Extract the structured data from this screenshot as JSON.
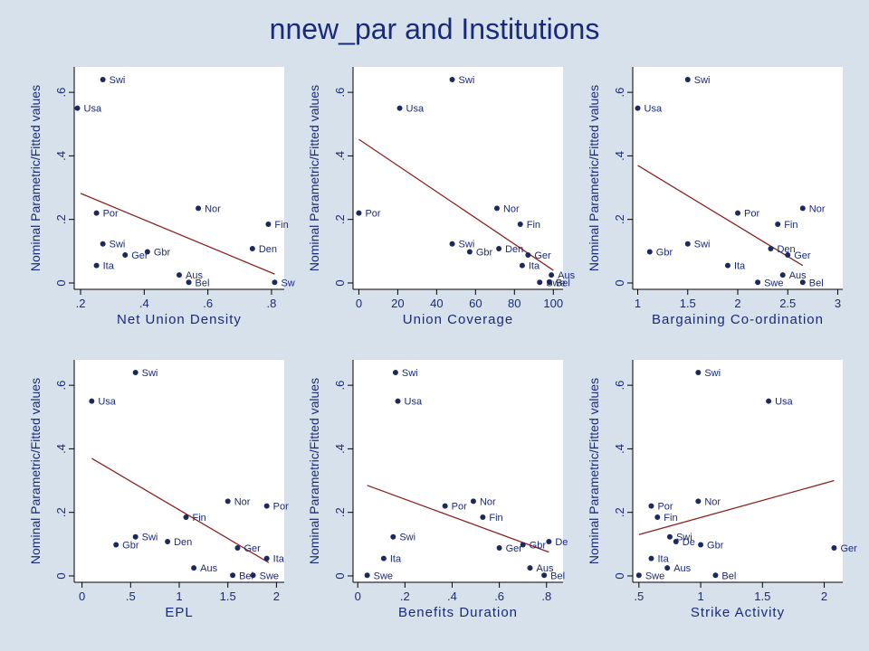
{
  "title": "nnew_par and Institutions",
  "colors": {
    "points": "#1a2a5e",
    "labels": "#1a2a7a",
    "fit_line": "#8b2323",
    "plot_bg": "#ffffff",
    "page_bg": "#d7e1ec"
  },
  "chart_data": [
    {
      "type": "scatter",
      "xlabel": "Net Union Density",
      "ylabel": "Nominal Parametric/Fitted values",
      "xlim": [
        0.18,
        0.84
      ],
      "ylim": [
        -0.02,
        0.68
      ],
      "xticks": [
        0.2,
        0.4,
        0.6,
        0.8
      ],
      "xticklabels": [
        ".2",
        ".4",
        ".6",
        ".8"
      ],
      "yticks": [
        0,
        0.2,
        0.4,
        0.6
      ],
      "yticklabels": [
        "0",
        ".2",
        ".4",
        ".6"
      ],
      "points": [
        {
          "label": "Swi",
          "x": 0.27,
          "y": 0.64
        },
        {
          "label": "Usa",
          "x": 0.19,
          "y": 0.55
        },
        {
          "label": "Nor",
          "x": 0.57,
          "y": 0.235
        },
        {
          "label": "Por",
          "x": 0.25,
          "y": 0.22
        },
        {
          "label": "Fin",
          "x": 0.79,
          "y": 0.185
        },
        {
          "label": "Den",
          "x": 0.74,
          "y": 0.108
        },
        {
          "label": "Swi",
          "x": 0.27,
          "y": 0.123
        },
        {
          "label": "Gbr",
          "x": 0.41,
          "y": 0.098
        },
        {
          "label": "Ger",
          "x": 0.34,
          "y": 0.088
        },
        {
          "label": "Ita",
          "x": 0.25,
          "y": 0.055
        },
        {
          "label": "Aus",
          "x": 0.51,
          "y": 0.025
        },
        {
          "label": "Bel",
          "x": 0.54,
          "y": 0.002
        },
        {
          "label": "Sw",
          "x": 0.81,
          "y": 0.002
        }
      ],
      "fit": {
        "x": [
          0.2,
          0.81
        ],
        "y": [
          0.282,
          0.028
        ]
      }
    },
    {
      "type": "scatter",
      "xlabel": "Union Coverage",
      "ylabel": "Nominal Parametric/Fitted values",
      "xlim": [
        -3,
        105
      ],
      "ylim": [
        -0.02,
        0.68
      ],
      "xticks": [
        0,
        20,
        40,
        60,
        80,
        100
      ],
      "xticklabels": [
        "0",
        "20",
        "40",
        "60",
        "80",
        "100"
      ],
      "yticks": [
        0,
        0.2,
        0.4,
        0.6
      ],
      "yticklabels": [
        "0",
        ".2",
        ".4",
        ".6"
      ],
      "points": [
        {
          "label": "Swi",
          "x": 48,
          "y": 0.64
        },
        {
          "label": "Usa",
          "x": 21,
          "y": 0.55
        },
        {
          "label": "Por",
          "x": 0,
          "y": 0.22
        },
        {
          "label": "Nor",
          "x": 71,
          "y": 0.235
        },
        {
          "label": "Fin",
          "x": 83,
          "y": 0.185
        },
        {
          "label": "Swi",
          "x": 48,
          "y": 0.123
        },
        {
          "label": "Gbr",
          "x": 57,
          "y": 0.098
        },
        {
          "label": "Den",
          "x": 72,
          "y": 0.108
        },
        {
          "label": "Ger",
          "x": 87,
          "y": 0.088
        },
        {
          "label": "Ita",
          "x": 84,
          "y": 0.055
        },
        {
          "label": "Aus",
          "x": 99,
          "y": 0.025
        },
        {
          "label": "Swe",
          "x": 93,
          "y": 0.002
        },
        {
          "label": "Bel",
          "x": 98,
          "y": 0.002
        }
      ],
      "fit": {
        "x": [
          0,
          100
        ],
        "y": [
          0.452,
          0.04
        ]
      }
    },
    {
      "type": "scatter",
      "xlabel": "Bargaining Co-ordination",
      "ylabel": "Nominal Parametric/Fitted values",
      "xlim": [
        0.95,
        3.05
      ],
      "ylim": [
        -0.02,
        0.68
      ],
      "xticks": [
        1,
        1.5,
        2,
        2.5,
        3
      ],
      "xticklabels": [
        "1",
        "1.5",
        "2",
        "2.5",
        "3"
      ],
      "yticks": [
        0,
        0.2,
        0.4,
        0.6
      ],
      "yticklabels": [
        "0",
        ".2",
        ".4",
        ".6"
      ],
      "points": [
        {
          "label": "Swi",
          "x": 1.5,
          "y": 0.64
        },
        {
          "label": "Usa",
          "x": 1.0,
          "y": 0.55
        },
        {
          "label": "Por",
          "x": 2.0,
          "y": 0.22
        },
        {
          "label": "Nor",
          "x": 2.65,
          "y": 0.235
        },
        {
          "label": "Fin",
          "x": 2.4,
          "y": 0.185
        },
        {
          "label": "Gbr",
          "x": 1.12,
          "y": 0.098
        },
        {
          "label": "Swi",
          "x": 1.5,
          "y": 0.123
        },
        {
          "label": "Den",
          "x": 2.33,
          "y": 0.108
        },
        {
          "label": "Ger",
          "x": 2.5,
          "y": 0.088
        },
        {
          "label": "Ita",
          "x": 1.9,
          "y": 0.055
        },
        {
          "label": "Aus",
          "x": 2.45,
          "y": 0.025
        },
        {
          "label": "Swe",
          "x": 2.2,
          "y": 0.002
        },
        {
          "label": "Bel",
          "x": 2.65,
          "y": 0.002
        }
      ],
      "fit": {
        "x": [
          1,
          2.65
        ],
        "y": [
          0.37,
          0.055
        ]
      }
    },
    {
      "type": "scatter",
      "xlabel": "EPL",
      "ylabel": "Nominal Parametric/Fitted values",
      "xlim": [
        -0.08,
        2.08
      ],
      "ylim": [
        -0.02,
        0.68
      ],
      "xticks": [
        0,
        0.5,
        1,
        1.5,
        2
      ],
      "xticklabels": [
        "0",
        ".5",
        "1",
        "1.5",
        "2"
      ],
      "yticks": [
        0,
        0.2,
        0.4,
        0.6
      ],
      "yticklabels": [
        "0",
        ".2",
        ".4",
        ".6"
      ],
      "points": [
        {
          "label": "Swi",
          "x": 0.55,
          "y": 0.64
        },
        {
          "label": "Usa",
          "x": 0.1,
          "y": 0.55
        },
        {
          "label": "Nor",
          "x": 1.5,
          "y": 0.235
        },
        {
          "label": "Por",
          "x": 1.9,
          "y": 0.22
        },
        {
          "label": "Fin",
          "x": 1.07,
          "y": 0.185
        },
        {
          "label": "Swi",
          "x": 0.55,
          "y": 0.123
        },
        {
          "label": "Gbr",
          "x": 0.35,
          "y": 0.098
        },
        {
          "label": "Den",
          "x": 0.88,
          "y": 0.108
        },
        {
          "label": "Ger",
          "x": 1.6,
          "y": 0.088
        },
        {
          "label": "Ita",
          "x": 1.9,
          "y": 0.055
        },
        {
          "label": "Aus",
          "x": 1.15,
          "y": 0.025
        },
        {
          "label": "Bel",
          "x": 1.55,
          "y": 0.002
        },
        {
          "label": "Swe",
          "x": 1.76,
          "y": 0.002
        }
      ],
      "fit": {
        "x": [
          0.1,
          1.92
        ],
        "y": [
          0.37,
          0.042
        ]
      }
    },
    {
      "type": "scatter",
      "xlabel": "Benefits Duration",
      "ylabel": "Nominal Parametric/Fitted values",
      "xlim": [
        -0.02,
        0.87
      ],
      "ylim": [
        -0.02,
        0.68
      ],
      "xticks": [
        0,
        0.2,
        0.4,
        0.6,
        0.8
      ],
      "xticklabels": [
        "0",
        ".2",
        ".4",
        ".6",
        ".8"
      ],
      "yticks": [
        0,
        0.2,
        0.4,
        0.6
      ],
      "yticklabels": [
        "0",
        ".2",
        ".4",
        ".6"
      ],
      "points": [
        {
          "label": "Swi",
          "x": 0.16,
          "y": 0.64
        },
        {
          "label": "Usa",
          "x": 0.17,
          "y": 0.55
        },
        {
          "label": "Por",
          "x": 0.37,
          "y": 0.22
        },
        {
          "label": "Nor",
          "x": 0.49,
          "y": 0.235
        },
        {
          "label": "Fin",
          "x": 0.53,
          "y": 0.185
        },
        {
          "label": "Swi",
          "x": 0.15,
          "y": 0.123
        },
        {
          "label": "Ita",
          "x": 0.11,
          "y": 0.055
        },
        {
          "label": "Swe",
          "x": 0.04,
          "y": 0.002
        },
        {
          "label": "Ger",
          "x": 0.6,
          "y": 0.088
        },
        {
          "label": "Gbr",
          "x": 0.7,
          "y": 0.098
        },
        {
          "label": "De",
          "x": 0.81,
          "y": 0.108
        },
        {
          "label": "Aus",
          "x": 0.73,
          "y": 0.025
        },
        {
          "label": "Bel",
          "x": 0.79,
          "y": 0.002
        }
      ],
      "fit": {
        "x": [
          0.04,
          0.81
        ],
        "y": [
          0.285,
          0.075
        ]
      }
    },
    {
      "type": "scatter",
      "xlabel": "Strike Activity",
      "ylabel": "Nominal Parametric/Fitted values",
      "xlim": [
        0.45,
        2.15
      ],
      "ylim": [
        -0.02,
        0.68
      ],
      "xticks": [
        0.5,
        1,
        1.5,
        2
      ],
      "xticklabels": [
        ".5",
        "1",
        "1.5",
        "2"
      ],
      "yticks": [
        0,
        0.2,
        0.4,
        0.6
      ],
      "yticklabels": [
        "0",
        ".2",
        ".4",
        ".6"
      ],
      "points": [
        {
          "label": "Swi",
          "x": 0.98,
          "y": 0.64
        },
        {
          "label": "Usa",
          "x": 1.55,
          "y": 0.55
        },
        {
          "label": "Por",
          "x": 0.6,
          "y": 0.22
        },
        {
          "label": "Nor",
          "x": 0.98,
          "y": 0.235
        },
        {
          "label": "Fin",
          "x": 0.65,
          "y": 0.185
        },
        {
          "label": "Swi",
          "x": 0.75,
          "y": 0.123
        },
        {
          "label": "De",
          "x": 0.8,
          "y": 0.108
        },
        {
          "label": "Gbr",
          "x": 1.0,
          "y": 0.098
        },
        {
          "label": "Ger",
          "x": 2.08,
          "y": 0.088
        },
        {
          "label": "Ita",
          "x": 0.6,
          "y": 0.055
        },
        {
          "label": "Aus",
          "x": 0.73,
          "y": 0.025
        },
        {
          "label": "Swe",
          "x": 0.5,
          "y": 0.002
        },
        {
          "label": "Bel",
          "x": 1.12,
          "y": 0.002
        }
      ],
      "fit": {
        "x": [
          0.5,
          2.08
        ],
        "y": [
          0.13,
          0.3
        ]
      }
    }
  ]
}
